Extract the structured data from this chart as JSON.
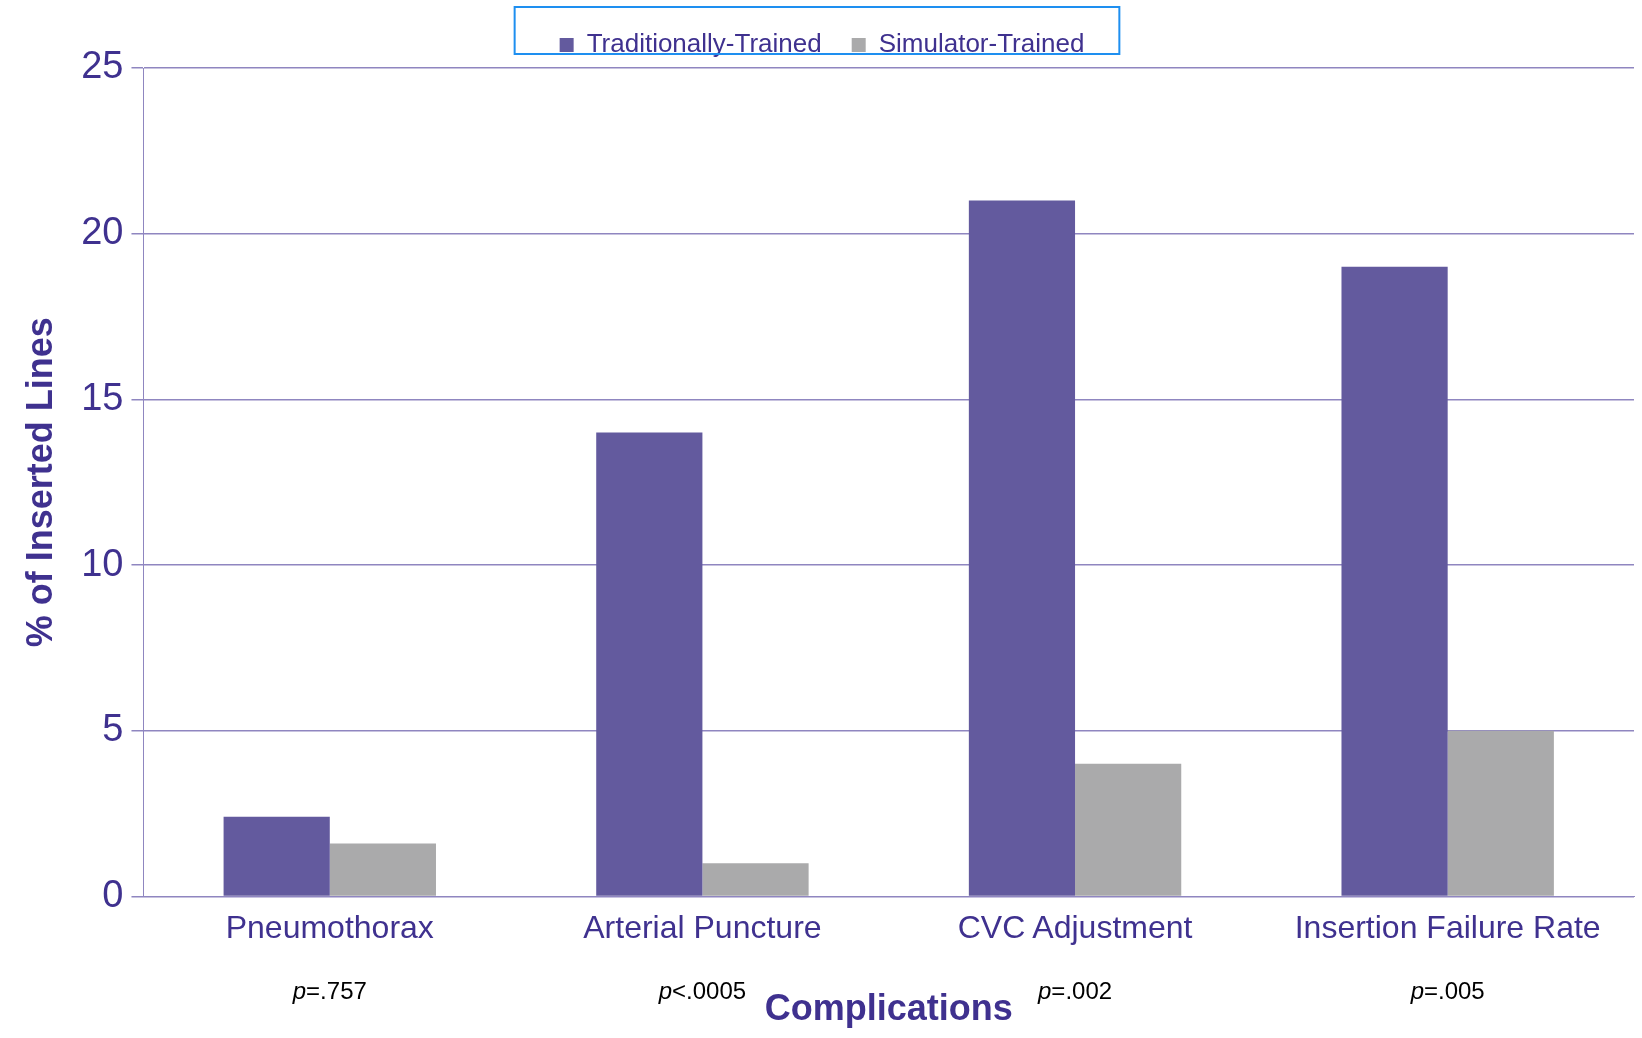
{
  "chart_data": {
    "type": "bar",
    "xlabel": "Complications",
    "ylabel": "% of Inserted Lines",
    "categories": [
      "Pneumothorax",
      "Arterial Puncture",
      "CVC Adjustment",
      "Insertion Failure Rate"
    ],
    "series": [
      {
        "name": "Traditionally-Trained",
        "color": "#635a9e",
        "values": [
          2.4,
          14,
          21,
          19
        ]
      },
      {
        "name": "Simulator-Trained",
        "color": "#aaaaab",
        "values": [
          1.6,
          1,
          4,
          5
        ]
      }
    ],
    "ylim": [
      0,
      25
    ],
    "yticks": [
      0,
      5,
      10,
      15,
      20,
      25
    ],
    "grid": "y",
    "legend": "top",
    "annotations": [
      "p=.757",
      "p<.0005",
      "p=.002",
      "p=.005"
    ]
  }
}
